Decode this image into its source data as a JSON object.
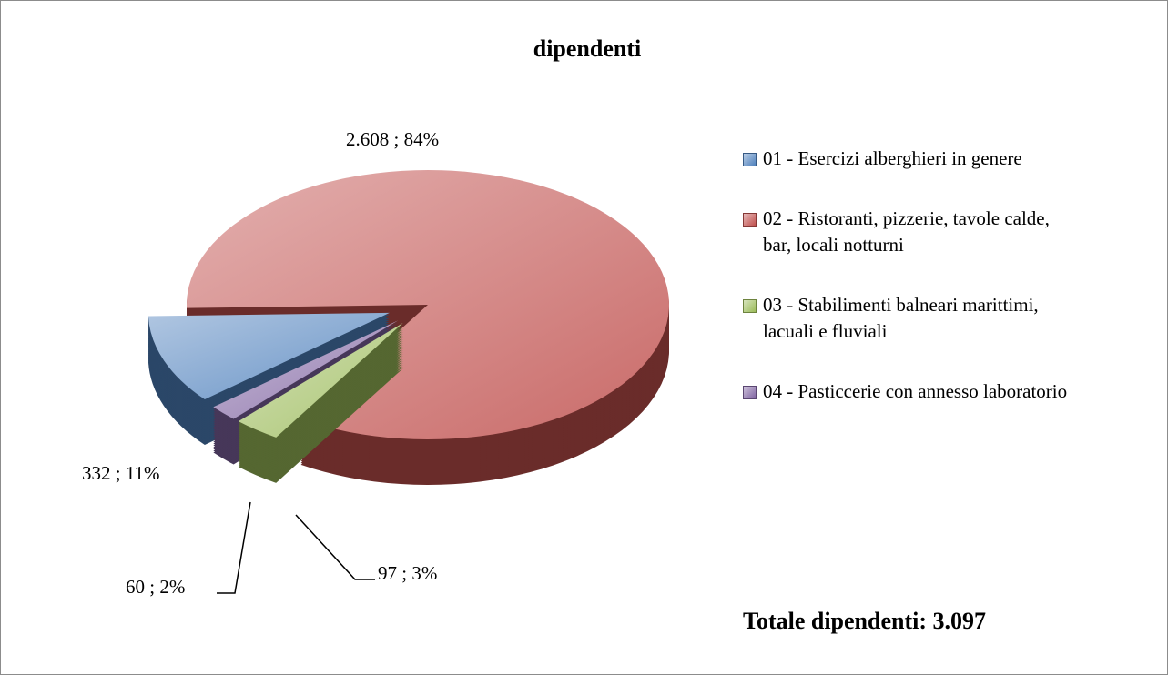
{
  "chart_data": {
    "type": "pie",
    "title": "dipendenti",
    "categories": [
      "01 - Esercizi alberghieri in genere",
      "02 - Ristoranti, pizzerie, tavole calde, bar, locali notturni",
      "03 - Stabilimenti balneari marittimi, lacuali e fluviali",
      "04 - Pasticcerie con annesso laboratorio"
    ],
    "values": [
      332,
      2608,
      97,
      60
    ],
    "value_labels": [
      "332 ; 11%",
      "2.608 ; 84%",
      "97 ; 3%",
      "60 ; 2%"
    ],
    "colors": [
      "#4f81bd",
      "#c0504d",
      "#9bbb59",
      "#8064a2"
    ],
    "legend": "right",
    "annotations": [
      "Totale dipendenti: 3.097"
    ]
  }
}
